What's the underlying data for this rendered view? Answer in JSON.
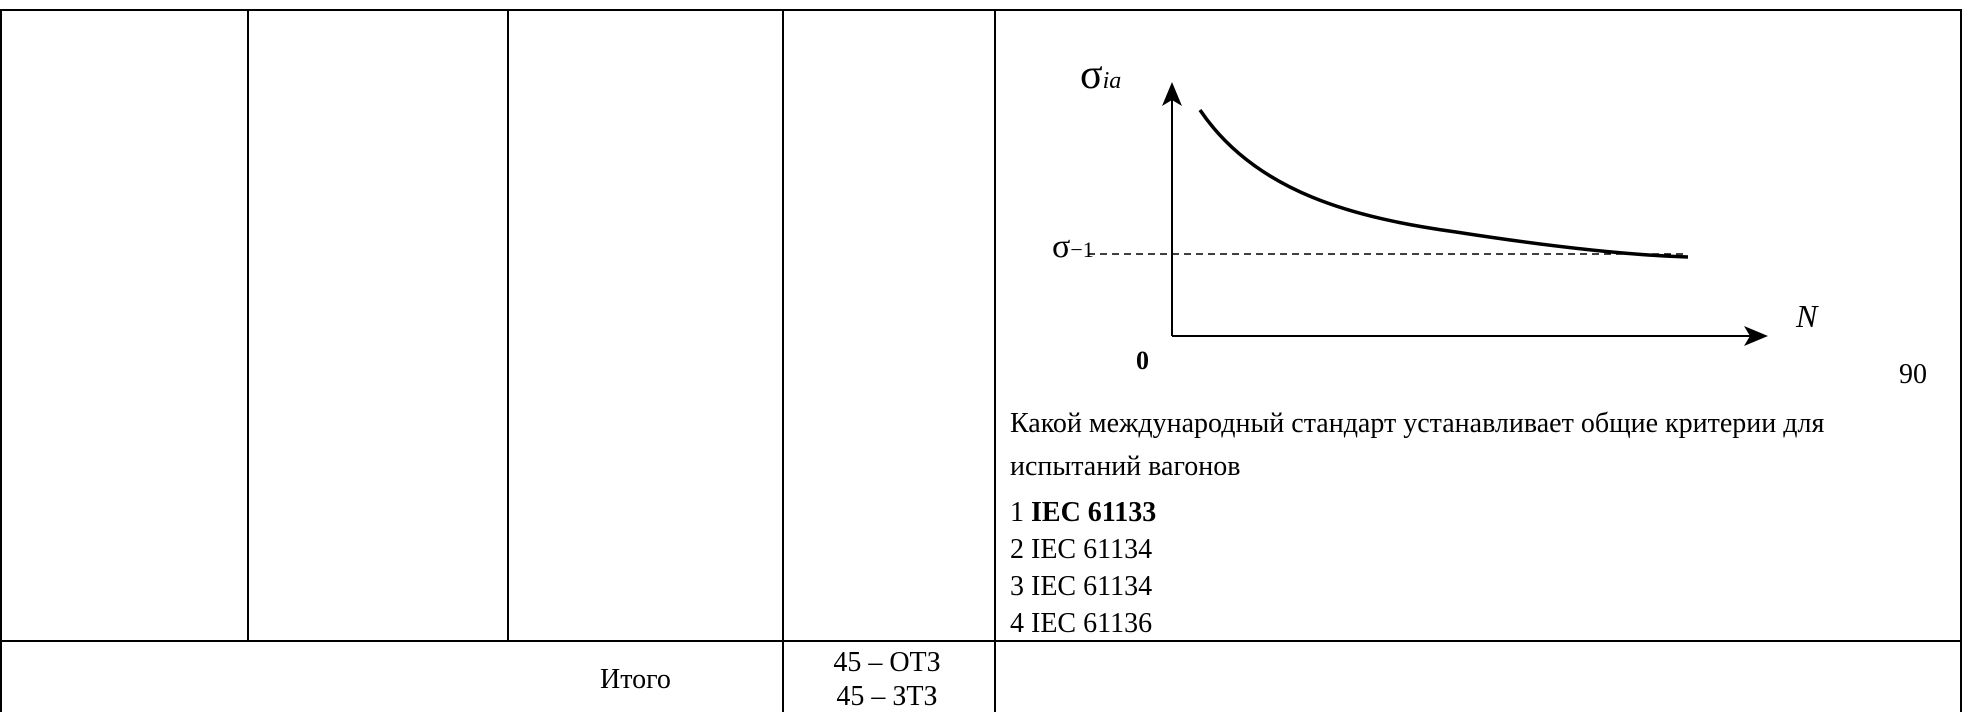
{
  "graph": {
    "y_axis_symbol": "σ",
    "y_axis_subscript": "ia",
    "threshold_symbol": "σ",
    "threshold_subscript": "−1",
    "x_axis_label": "N",
    "origin_label": "0"
  },
  "page_number": "90",
  "question": {
    "text": "Какой международный стандарт устанавливает общие критерии для испытаний вагонов",
    "options": [
      {
        "number": "1",
        "text": "IEC 61133",
        "is_correct": true
      },
      {
        "number": "2",
        "text": "IEC 61134",
        "is_correct": false
      },
      {
        "number": "3",
        "text": "IEC 61134",
        "is_correct": false
      },
      {
        "number": "4",
        "text": "IEC 61136",
        "is_correct": false
      }
    ]
  },
  "footer": {
    "label": "Итого",
    "values": [
      "45 – ОТЗ",
      "45 – ЗТЗ"
    ]
  }
}
